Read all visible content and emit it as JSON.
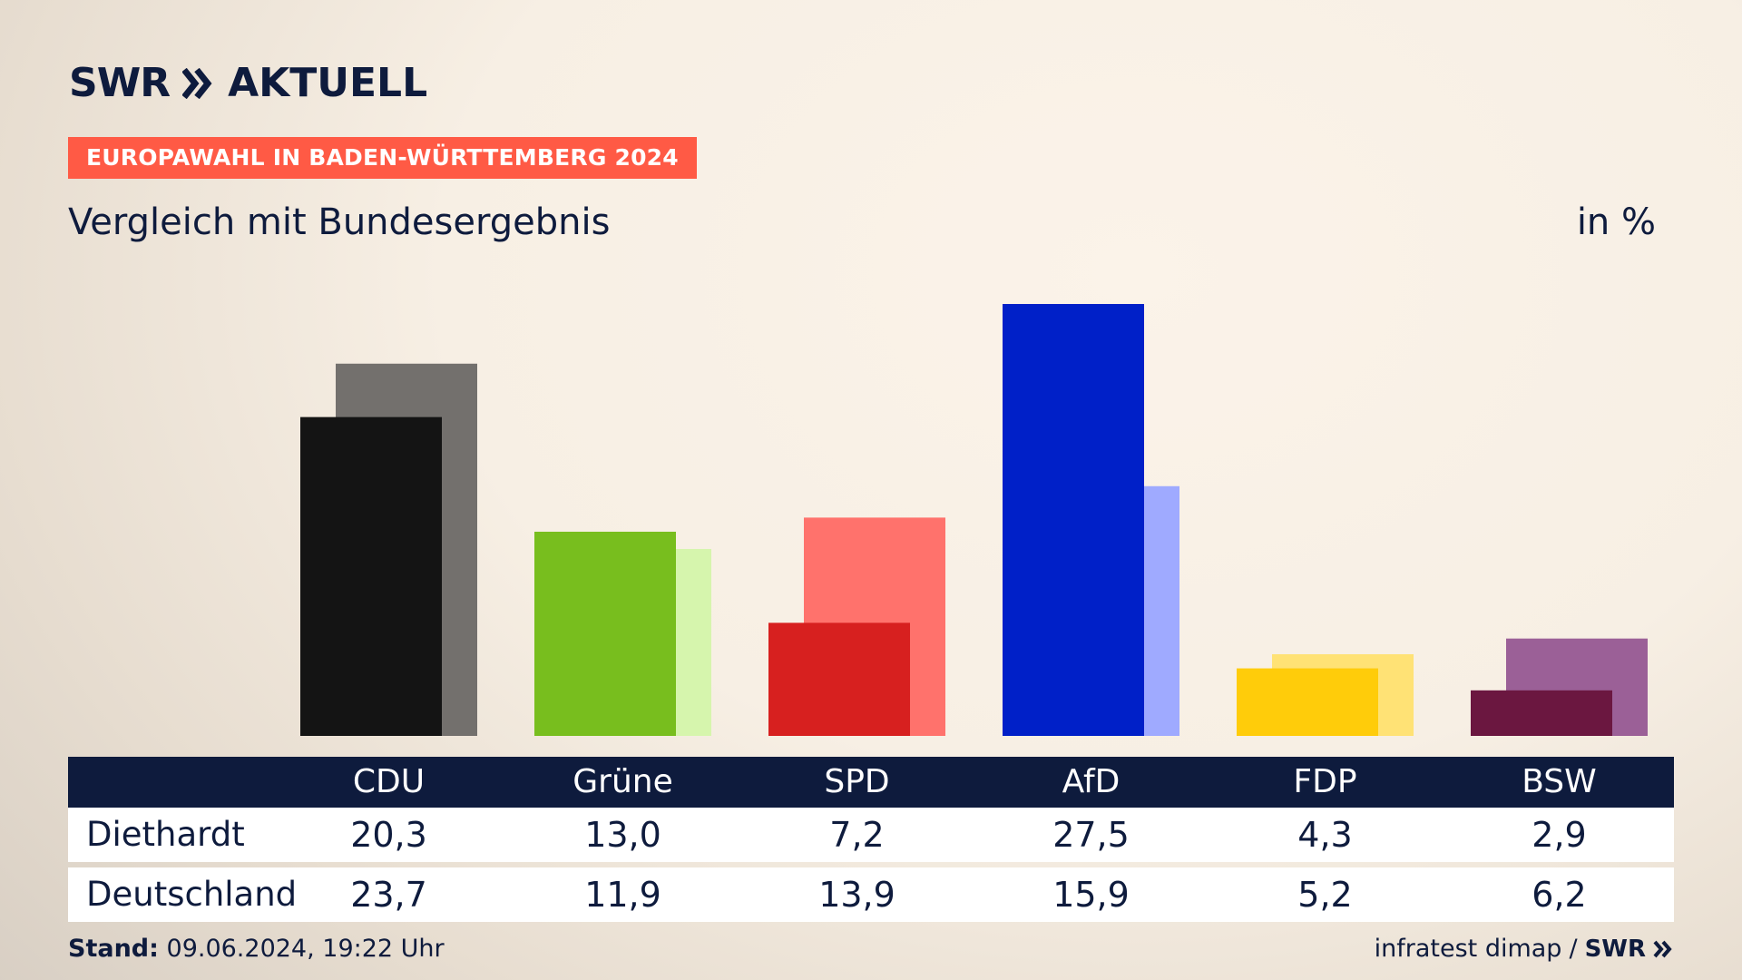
{
  "brand": {
    "logo_main": "SWR",
    "logo_sub": "AKTUELL",
    "footer_logo": "SWR"
  },
  "badge": "EUROPAWAHL IN BADEN-WÜRTTEMBERG 2024",
  "title": "Vergleich mit Bundesergebnis",
  "unit": "in %",
  "footer": {
    "stand_label": "Stand:",
    "stand_value": "09.06.2024, 19:22 Uhr",
    "source": "infratest dimap",
    "separator": "/"
  },
  "chart_data": {
    "type": "bar",
    "title": "Vergleich mit Bundesergebnis",
    "unit": "in %",
    "categories": [
      "CDU",
      "Grüne",
      "SPD",
      "AfD",
      "FDP",
      "BSW"
    ],
    "series": [
      {
        "name": "Diethardt",
        "values": [
          20.3,
          13.0,
          7.2,
          27.5,
          4.3,
          2.9
        ],
        "colors": [
          "#141414",
          "#78be1e",
          "#d7201f",
          "#0020c8",
          "#ffcc0a",
          "#6b1740"
        ]
      },
      {
        "name": "Deutschland",
        "values": [
          23.7,
          11.9,
          13.9,
          15.9,
          5.2,
          6.2
        ],
        "colors": [
          "#73706d",
          "#d6f5ad",
          "#ff726c",
          "#9faaff",
          "#ffe275",
          "#9b6097"
        ]
      }
    ],
    "labels": {
      "Diethardt": [
        "20,3",
        "13,0",
        "7,2",
        "27,5",
        "4,3",
        "2,9"
      ],
      "Deutschland": [
        "23,7",
        "11,9",
        "13,9",
        "15,9",
        "5,2",
        "6,2"
      ]
    },
    "ylim": [
      0,
      27.5
    ],
    "grid": false,
    "legend": "table-below"
  }
}
